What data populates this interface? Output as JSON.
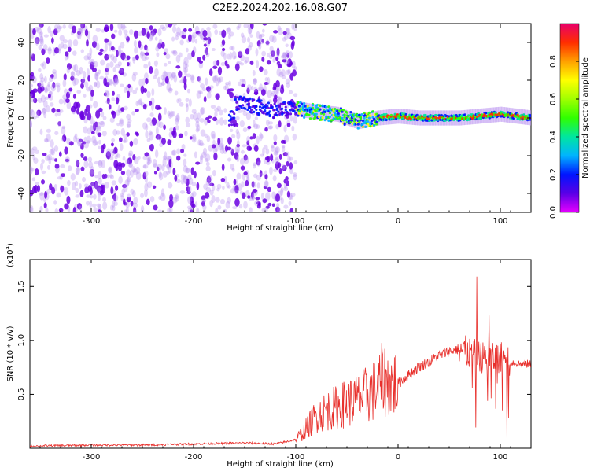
{
  "title": "C2E2.2024.202.16.08.G07",
  "colors": {
    "snr_line": "#e8302c",
    "scatter_purple": "#6a00e0",
    "colormap": [
      "#e600ff",
      "#5a00e6",
      "#0014ff",
      "#00b4ff",
      "#00e6a0",
      "#30ff00",
      "#a0ff00",
      "#ffff00",
      "#ffa000",
      "#ff2d00",
      "#e8006a"
    ]
  },
  "chart_data": [
    {
      "type": "heatmap",
      "xlabel": "Height of straight line (km)",
      "ylabel": "Frequency (Hz)",
      "xlim": [
        -360,
        130
      ],
      "ylim": [
        -50,
        50
      ],
      "xticks": [
        -300,
        -200,
        -100,
        0,
        100
      ],
      "yticks": [
        -40,
        -20,
        0,
        20,
        40
      ],
      "colorbar": {
        "label": "Normalized spectral amplitude",
        "range": [
          0,
          1
        ],
        "ticks": [
          "0.0",
          "0.2",
          "0.4",
          "0.6",
          "0.8"
        ]
      },
      "noise_region": [
        -360,
        -100
      ],
      "signal_trace": {
        "x": [
          -160,
          -140,
          -120,
          -100,
          -80,
          -60,
          -40,
          -20,
          0,
          20,
          40,
          60,
          80,
          100,
          130
        ],
        "y": [
          8,
          6,
          4,
          5,
          3,
          2,
          -2,
          0,
          1,
          0,
          0,
          0,
          1,
          2,
          0
        ]
      }
    },
    {
      "type": "line",
      "xlabel": "Height of straight line (km)",
      "ylabel": "SNR (10 * v/v)",
      "yscale_label": "(x10",
      "yscale_exp": "4",
      "yscale_close": ")",
      "xlim": [
        -360,
        130
      ],
      "ylim": [
        0,
        1.75
      ],
      "xticks": [
        -300,
        -200,
        -100,
        0,
        100
      ],
      "yticks": [
        0.5,
        1.0,
        1.5
      ],
      "ytick_labels": [
        "0.5",
        "1.0",
        "1.5"
      ],
      "series": [
        {
          "x": [
            -360,
            -300,
            -250,
            -200,
            -150,
            -120,
            -100,
            -90,
            -80,
            -70,
            -60,
            -50,
            -40,
            -30,
            -20,
            -15,
            -10,
            0,
            10,
            20,
            30,
            40,
            50,
            60,
            70,
            80,
            90,
            100,
            110,
            120,
            130
          ],
          "y": [
            0.02,
            0.03,
            0.03,
            0.04,
            0.05,
            0.04,
            0.08,
            0.18,
            0.3,
            0.35,
            0.38,
            0.42,
            0.45,
            0.5,
            0.55,
            0.65,
            0.6,
            0.6,
            0.68,
            0.75,
            0.8,
            0.86,
            0.9,
            0.92,
            0.88,
            0.85,
            0.82,
            0.85,
            0.8,
            0.78,
            0.78
          ]
        }
      ]
    }
  ]
}
